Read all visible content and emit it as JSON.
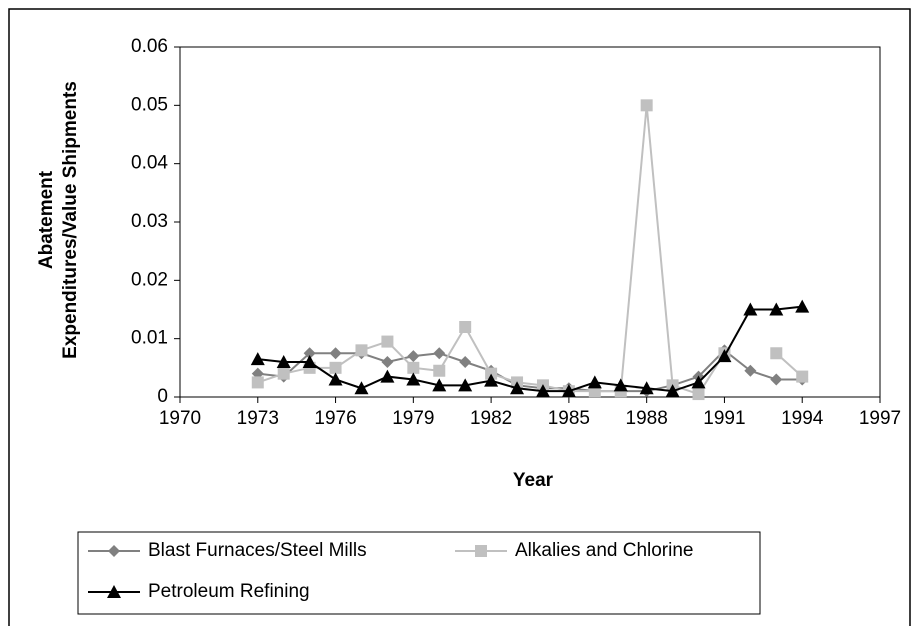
{
  "chart_data": {
    "type": "line",
    "x_label": "Year",
    "y_label": [
      "Abatement",
      "Expenditures/Value Shipments"
    ],
    "x": [
      1973,
      1974,
      1975,
      1976,
      1977,
      1978,
      1979,
      1980,
      1981,
      1982,
      1983,
      1984,
      1985,
      1986,
      1987,
      1988,
      1989,
      1990,
      1991,
      1992,
      1993,
      1994
    ],
    "series": [
      {
        "name": "Blast Furnaces/Steel Mills",
        "color": "#808080",
        "marker": "diamond",
        "values": [
          0.004,
          0.0035,
          0.0075,
          0.0075,
          0.0075,
          0.006,
          0.007,
          0.0075,
          0.006,
          0.0045,
          0.002,
          0.0015,
          0.0015,
          0.001,
          0.001,
          0.001,
          0.002,
          0.0035,
          0.008,
          0.0045,
          0.003,
          0.003
        ]
      },
      {
        "name": "Alkalies and Chlorine",
        "color": "#c0c0c0",
        "marker": "square",
        "values": [
          0.0025,
          0.004,
          0.005,
          0.005,
          0.008,
          0.0095,
          0.005,
          0.0045,
          0.012,
          0.004,
          0.0025,
          0.002,
          0.001,
          0.001,
          0.001,
          0.05,
          0.002,
          0.0005,
          0.0075,
          null,
          0.0075,
          0.0035
        ]
      },
      {
        "name": "Petroleum Refining",
        "color": "#000000",
        "marker": "triangle",
        "values": [
          0.0065,
          0.006,
          0.006,
          0.003,
          0.0015,
          0.0035,
          0.003,
          0.002,
          0.002,
          0.0028,
          0.0015,
          0.001,
          0.001,
          0.0025,
          0.002,
          0.0015,
          0.001,
          0.0025,
          0.007,
          0.015,
          0.015,
          0.0155
        ]
      }
    ],
    "xlim": [
      1970,
      1997
    ],
    "xticks": [
      1970,
      1973,
      1976,
      1979,
      1982,
      1985,
      1988,
      1991,
      1994,
      1997
    ],
    "ylim": [
      0,
      0.06
    ],
    "yticks": [
      0,
      0.01,
      0.02,
      0.03,
      0.04,
      0.05,
      0.06
    ],
    "grid": false,
    "legend": "bottom"
  }
}
